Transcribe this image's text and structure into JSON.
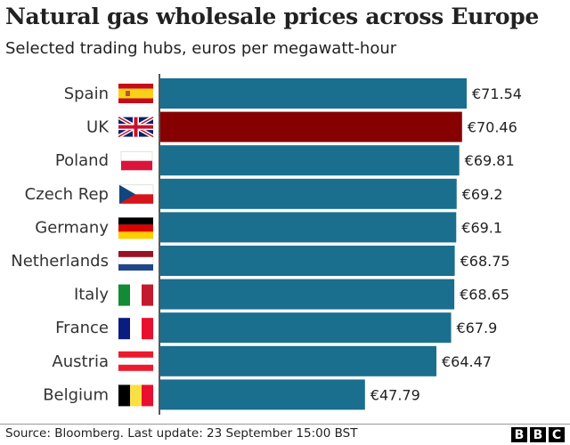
{
  "title": "Natural gas wholesale prices across Europe",
  "subtitle": "Selected trading hubs, euros per megawatt-hour",
  "source": "Source: Bloomberg. Last update: 23 September 15:00 BST",
  "logo": [
    "B",
    "B",
    "C"
  ],
  "colors": {
    "bar": "#1a6e8e",
    "highlight": "#870000",
    "axis": "#222222"
  },
  "chart_data": {
    "type": "bar",
    "orientation": "horizontal",
    "title": "Natural gas wholesale prices across Europe",
    "subtitle": "Selected trading hubs, euros per megawatt-hour",
    "categories": [
      "Spain",
      "UK",
      "Poland",
      "Czech Rep",
      "Germany",
      "Netherlands",
      "Italy",
      "France",
      "Austria",
      "Belgium"
    ],
    "values": [
      71.54,
      70.46,
      69.81,
      69.2,
      69.1,
      68.75,
      68.65,
      67.9,
      64.47,
      47.79
    ],
    "labels": [
      "€71.54",
      "€70.46",
      "€69.81",
      "€69.2",
      "€69.1",
      "€68.75",
      "€68.65",
      "€67.9",
      "€64.47",
      "€47.79"
    ],
    "flags": [
      "spain-flag",
      "uk-flag",
      "poland-flag",
      "czech-flag",
      "germany-flag",
      "netherlands-flag",
      "italy-flag",
      "france-flag",
      "austria-flag",
      "belgium-flag"
    ],
    "highlight": "UK",
    "xlim": [
      0,
      71.54
    ],
    "grid": false
  }
}
